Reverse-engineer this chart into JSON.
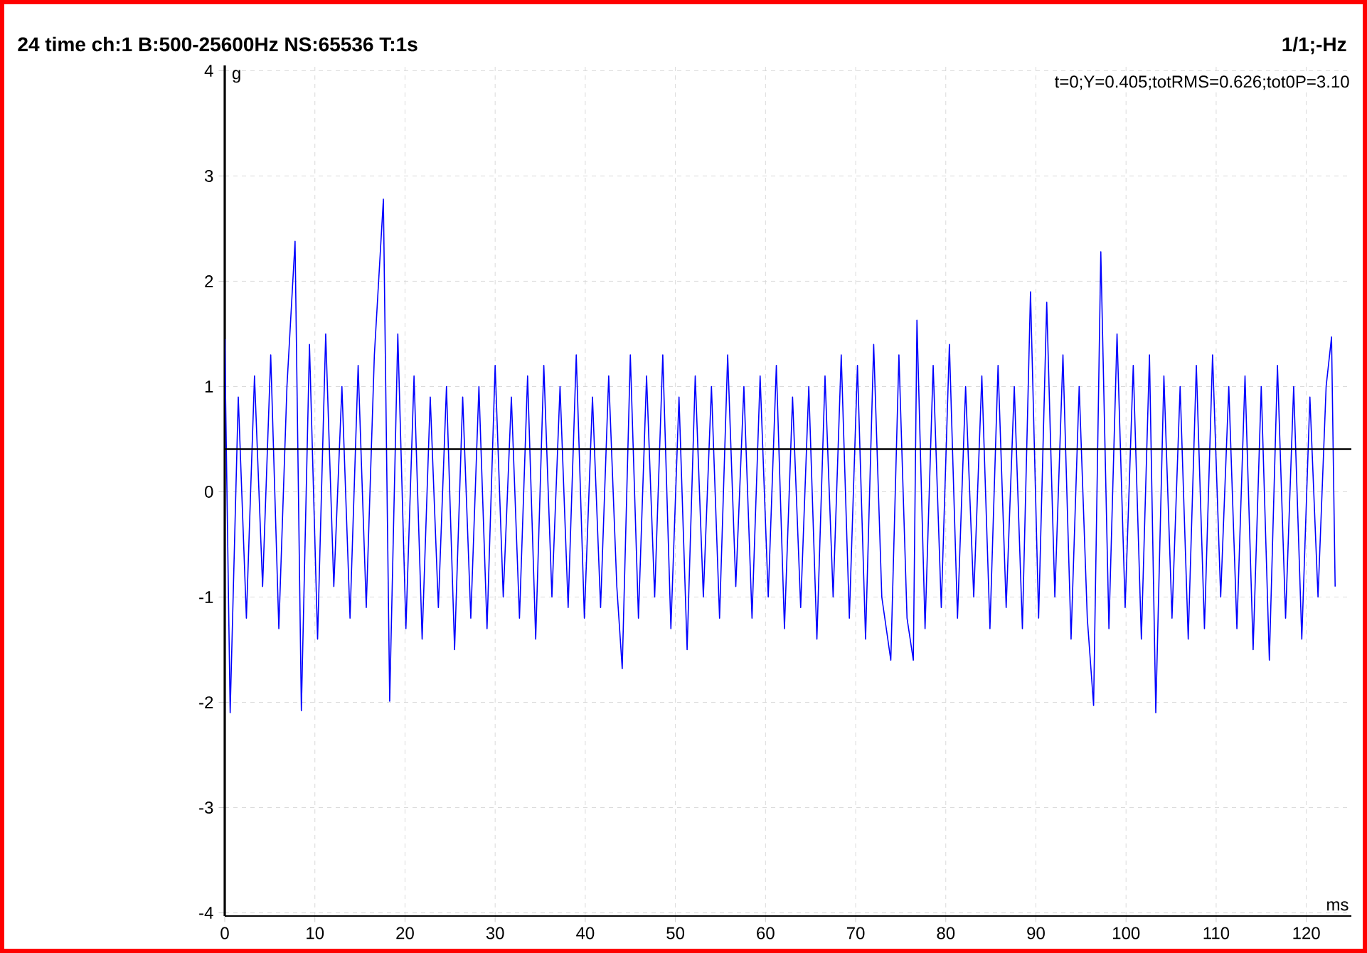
{
  "chart_data": {
    "type": "line",
    "title": "24 time ch:1 B:500-25600Hz NS:65536 T:1s",
    "xlabel": "ms",
    "ylabel": "g",
    "annotations": [
      "1/1;-Hz",
      "t=0;Y=0.405;totRMS=0.626;tot0P=3.10"
    ],
    "xlim": [
      0,
      125
    ],
    "ylim": [
      -4.03,
      4.05
    ],
    "xticks": [
      0,
      10,
      20,
      30,
      40,
      50,
      60,
      70,
      80,
      90,
      100,
      110,
      120
    ],
    "yticks": [
      -4,
      -3,
      -2,
      -1,
      0,
      1,
      2,
      3,
      4
    ],
    "grid": true,
    "marker": "none",
    "line_style": "solid",
    "ref_lines": [
      {
        "axis": "y",
        "value": 0.405,
        "color": "#000000"
      }
    ],
    "series": [
      {
        "color": "#0000ff",
        "x": [
          0,
          0.6,
          1.5,
          2.4,
          3.3,
          4.2,
          5.1,
          6,
          6.9,
          7.8,
          8.5,
          9.4,
          10.3,
          11.2,
          12.1,
          13,
          13.9,
          14.8,
          15.7,
          16.6,
          17.6,
          18.3,
          19.2,
          20.1,
          21,
          21.9,
          22.8,
          23.7,
          24.6,
          25.5,
          26.4,
          27.3,
          28.2,
          29.1,
          30,
          30.9,
          31.8,
          32.7,
          33.6,
          34.5,
          35.4,
          36.3,
          37.2,
          38.1,
          39,
          39.9,
          40.8,
          41.7,
          42.6,
          43.5,
          44.1,
          45,
          45.9,
          46.8,
          47.7,
          48.6,
          49.5,
          50.4,
          51.3,
          52.2,
          53.1,
          54,
          54.9,
          55.8,
          56.7,
          57.6,
          58.5,
          59.4,
          60.3,
          61.2,
          62.1,
          63,
          63.9,
          64.8,
          65.7,
          66.6,
          67.5,
          68.4,
          69.3,
          70.2,
          71.1,
          72,
          72.9,
          73.9,
          74.8,
          75.7,
          76.4,
          76.8,
          77.7,
          78.6,
          79.5,
          80.4,
          81.3,
          82.2,
          83.1,
          84,
          84.9,
          85.8,
          86.7,
          87.6,
          88.5,
          89.4,
          90.3,
          91.2,
          92.1,
          93,
          93.9,
          94.8,
          95.7,
          96.4,
          97.2,
          98.1,
          99,
          99.9,
          100.8,
          101.7,
          102.6,
          103.3,
          104.2,
          105.1,
          106,
          106.9,
          107.8,
          108.7,
          109.6,
          110.5,
          111.4,
          112.3,
          113.2,
          114.1,
          115,
          115.9,
          116.8,
          117.7,
          118.6,
          119.5,
          120.4,
          121.3,
          122.2,
          122.8,
          123.2
        ],
        "values": [
          1.45,
          -2.1,
          0.9,
          -1.2,
          1.1,
          -0.9,
          1.3,
          -1.3,
          1.0,
          2.38,
          -2.08,
          1.4,
          -1.4,
          1.5,
          -0.9,
          1.0,
          -1.2,
          1.2,
          -1.1,
          1.3,
          2.78,
          -1.99,
          1.5,
          -1.3,
          1.1,
          -1.4,
          0.9,
          -1.1,
          1.0,
          -1.5,
          0.9,
          -1.2,
          1.0,
          -1.3,
          1.2,
          -1.0,
          0.9,
          -1.2,
          1.1,
          -1.4,
          1.2,
          -1.0,
          1.0,
          -1.1,
          1.3,
          -1.2,
          0.9,
          -1.1,
          1.1,
          -0.9,
          -1.68,
          1.3,
          -1.2,
          1.1,
          -1.0,
          1.3,
          -1.3,
          0.9,
          -1.5,
          1.1,
          -1.0,
          1.0,
          -1.2,
          1.3,
          -0.9,
          1.0,
          -1.2,
          1.1,
          -1.0,
          1.2,
          -1.3,
          0.9,
          -1.1,
          1.0,
          -1.4,
          1.1,
          -1.0,
          1.3,
          -1.2,
          1.2,
          -1.4,
          1.4,
          -1.0,
          -1.6,
          1.3,
          -1.2,
          -1.6,
          1.63,
          -1.3,
          1.2,
          -1.1,
          1.4,
          -1.2,
          1.0,
          -1.0,
          1.1,
          -1.3,
          1.2,
          -1.1,
          1.0,
          -1.3,
          1.9,
          -1.2,
          1.8,
          -1.0,
          1.3,
          -1.4,
          1.0,
          -1.2,
          -2.03,
          2.28,
          -1.3,
          1.5,
          -1.1,
          1.2,
          -1.4,
          1.3,
          -2.1,
          1.1,
          -1.2,
          1.0,
          -1.4,
          1.2,
          -1.3,
          1.3,
          -1.0,
          1.0,
          -1.3,
          1.1,
          -1.5,
          1.0,
          -1.6,
          1.2,
          -1.2,
          1.0,
          -1.4,
          0.9,
          -1.0,
          1.0,
          1.47,
          -0.9
        ]
      }
    ]
  }
}
